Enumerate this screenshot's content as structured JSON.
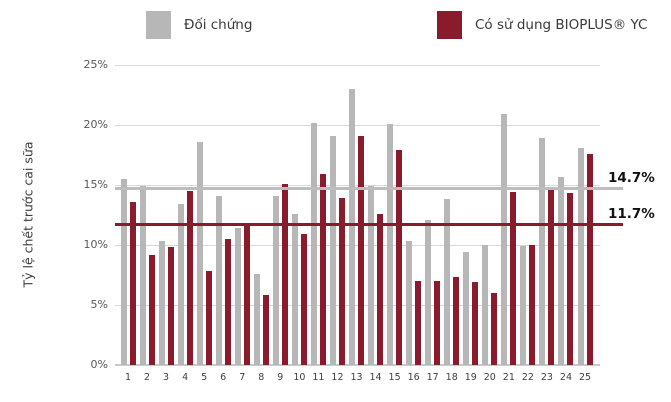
{
  "legend": {
    "control": "Đối chứng",
    "treatment": "Có sử dụng BIOPLUS® YC"
  },
  "colors": {
    "control": "#b7b7b7",
    "treatment": "#8a1b2d",
    "gridline": "#d9d9d9",
    "baseline": "#c9c9c9",
    "control_avg_line": "#bdbdbd",
    "treatment_avg_line": "#8a1b2d"
  },
  "chart_data": {
    "type": "bar",
    "title": "",
    "xlabel": "",
    "ylabel": "Tỷ lệ chết trước cai sữa",
    "ylim": [
      0,
      25
    ],
    "ytick_step": 5,
    "yticks": [
      "0%",
      "5%",
      "10%",
      "15%",
      "20%",
      "25%"
    ],
    "grid": true,
    "legend_position": "top",
    "categories": [
      "1",
      "2",
      "3",
      "4",
      "5",
      "6",
      "7",
      "8",
      "9",
      "10",
      "11",
      "12",
      "13",
      "14",
      "15",
      "16",
      "17",
      "18",
      "19",
      "20",
      "21",
      "22",
      "23",
      "24",
      "25"
    ],
    "series": [
      {
        "name": "Đối chứng",
        "color": "#b7b7b7",
        "values": [
          15.5,
          14.9,
          10.3,
          13.4,
          18.6,
          14.1,
          11.4,
          7.6,
          14.1,
          12.6,
          20.2,
          19.1,
          23.0,
          14.9,
          20.1,
          10.3,
          12.1,
          13.8,
          9.4,
          10.0,
          20.9,
          9.9,
          18.9,
          15.7,
          18.1
        ]
      },
      {
        "name": "Có sử dụng BIOPLUS® YC",
        "color": "#8a1b2d",
        "values": [
          13.6,
          9.2,
          9.8,
          14.5,
          7.8,
          10.5,
          11.8,
          5.8,
          15.1,
          10.9,
          15.9,
          13.9,
          19.1,
          12.6,
          17.9,
          7.0,
          7.0,
          7.3,
          6.9,
          6.0,
          14.4,
          10.0,
          14.7,
          14.3,
          17.6
        ]
      }
    ],
    "reference_lines": [
      {
        "name": "control-average",
        "label": "14.7%",
        "value": 14.7,
        "color": "#bdbdbd"
      },
      {
        "name": "treatment-average",
        "label": "11.7%",
        "value": 11.7,
        "color": "#8a1b2d"
      }
    ]
  }
}
